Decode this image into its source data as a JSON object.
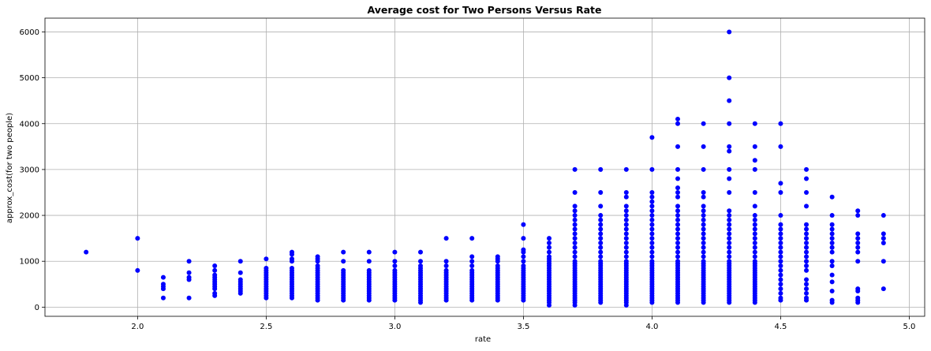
{
  "chart_data": {
    "type": "scatter",
    "title": "Average cost for Two Persons Versus Rate",
    "xlabel": "rate",
    "ylabel": "approx_cost(for two people)",
    "xlim": [
      1.64,
      5.06
    ],
    "ylim": [
      -200,
      6300
    ],
    "xticks": [
      2.0,
      2.5,
      3.0,
      3.5,
      4.0,
      4.5,
      5.0
    ],
    "xtick_labels": [
      "2.0",
      "2.5",
      "3.0",
      "3.5",
      "4.0",
      "4.5",
      "5.0"
    ],
    "yticks": [
      0,
      1000,
      2000,
      3000,
      4000,
      5000,
      6000
    ],
    "ytick_labels": [
      "0",
      "1000",
      "2000",
      "3000",
      "4000",
      "5000",
      "6000"
    ],
    "grid": true,
    "marker_color": "#0000ff",
    "columns": [
      {
        "x": 1.8,
        "values": [
          1200
        ]
      },
      {
        "x": 2.0,
        "values": [
          800,
          1500
        ]
      },
      {
        "x": 2.1,
        "values": [
          200,
          400,
          450,
          500,
          650
        ]
      },
      {
        "x": 2.2,
        "values": [
          200,
          600,
          650,
          750,
          1000
        ]
      },
      {
        "x": 2.3,
        "values": [
          250,
          300,
          400,
          450,
          500,
          550,
          600,
          650,
          700,
          800,
          900
        ]
      },
      {
        "x": 2.4,
        "values": [
          300,
          350,
          400,
          450,
          500,
          550,
          600,
          750,
          1000
        ]
      },
      {
        "x": 2.5,
        "values": [
          200,
          250,
          300,
          350,
          400,
          450,
          500,
          550,
          600,
          650,
          700,
          750,
          800,
          850,
          1050
        ]
      },
      {
        "x": 2.6,
        "values": [
          200,
          250,
          300,
          350,
          400,
          450,
          500,
          550,
          600,
          650,
          700,
          750,
          800,
          850,
          1000,
          1050,
          1150,
          1200
        ]
      },
      {
        "x": 2.7,
        "values": [
          150,
          200,
          250,
          300,
          350,
          400,
          450,
          500,
          550,
          600,
          650,
          700,
          750,
          800,
          850,
          900,
          1000,
          1050,
          1100
        ]
      },
      {
        "x": 2.8,
        "values": [
          150,
          200,
          250,
          300,
          350,
          400,
          450,
          500,
          550,
          600,
          650,
          700,
          750,
          800,
          1000,
          1200
        ]
      },
      {
        "x": 2.9,
        "values": [
          150,
          200,
          250,
          300,
          350,
          400,
          450,
          500,
          550,
          600,
          650,
          700,
          750,
          800,
          1000,
          1200
        ]
      },
      {
        "x": 3.0,
        "values": [
          150,
          200,
          250,
          300,
          350,
          400,
          450,
          500,
          550,
          600,
          650,
          700,
          750,
          800,
          900,
          1000,
          1200
        ]
      },
      {
        "x": 3.1,
        "values": [
          100,
          150,
          200,
          250,
          300,
          350,
          400,
          450,
          500,
          550,
          600,
          650,
          700,
          750,
          800,
          850,
          900,
          1000,
          1200
        ]
      },
      {
        "x": 3.2,
        "values": [
          150,
          200,
          250,
          300,
          350,
          400,
          450,
          500,
          550,
          600,
          650,
          700,
          750,
          800,
          900,
          1000,
          1500
        ]
      },
      {
        "x": 3.3,
        "values": [
          150,
          200,
          250,
          300,
          350,
          400,
          450,
          500,
          550,
          600,
          650,
          700,
          750,
          800,
          900,
          1000,
          1100,
          1500
        ]
      },
      {
        "x": 3.4,
        "values": [
          150,
          200,
          250,
          300,
          350,
          400,
          450,
          500,
          550,
          600,
          650,
          700,
          750,
          800,
          850,
          900,
          1000,
          1050,
          1100
        ]
      },
      {
        "x": 3.5,
        "values": [
          150,
          200,
          250,
          300,
          350,
          400,
          450,
          500,
          550,
          600,
          650,
          700,
          750,
          800,
          850,
          900,
          1000,
          1100,
          1200,
          1250,
          1500,
          1800
        ]
      },
      {
        "x": 3.6,
        "values": [
          40,
          100,
          150,
          200,
          250,
          300,
          350,
          400,
          450,
          500,
          550,
          600,
          650,
          700,
          750,
          800,
          850,
          900,
          950,
          1000,
          1050,
          1100,
          1200,
          1300,
          1400,
          1500
        ]
      },
      {
        "x": 3.7,
        "values": [
          40,
          100,
          150,
          200,
          250,
          300,
          350,
          400,
          450,
          500,
          550,
          600,
          650,
          700,
          750,
          800,
          850,
          900,
          950,
          1000,
          1100,
          1200,
          1300,
          1400,
          1500,
          1600,
          1700,
          1800,
          1900,
          2000,
          2100,
          2200,
          2500,
          3000
        ]
      },
      {
        "x": 3.8,
        "values": [
          100,
          150,
          200,
          250,
          300,
          350,
          400,
          450,
          500,
          550,
          600,
          650,
          700,
          750,
          800,
          850,
          900,
          950,
          1000,
          1100,
          1200,
          1300,
          1400,
          1500,
          1600,
          1700,
          1800,
          1900,
          2000,
          2200,
          2500,
          3000
        ]
      },
      {
        "x": 3.9,
        "values": [
          40,
          100,
          150,
          200,
          250,
          300,
          350,
          400,
          450,
          500,
          550,
          600,
          650,
          700,
          750,
          800,
          850,
          900,
          950,
          1000,
          1100,
          1200,
          1300,
          1400,
          1500,
          1600,
          1700,
          1800,
          1900,
          2000,
          2100,
          2200,
          2400,
          2500,
          3000
        ]
      },
      {
        "x": 4.0,
        "values": [
          100,
          150,
          200,
          250,
          300,
          350,
          400,
          450,
          500,
          550,
          600,
          650,
          700,
          750,
          800,
          850,
          900,
          950,
          1000,
          1100,
          1200,
          1300,
          1400,
          1500,
          1600,
          1700,
          1800,
          1900,
          2000,
          2100,
          2200,
          2300,
          2400,
          2500,
          3000,
          3700
        ]
      },
      {
        "x": 4.1,
        "values": [
          100,
          150,
          200,
          250,
          300,
          350,
          400,
          450,
          500,
          550,
          600,
          650,
          700,
          750,
          800,
          850,
          900,
          950,
          1000,
          1100,
          1200,
          1300,
          1400,
          1500,
          1600,
          1700,
          1800,
          1900,
          2000,
          2100,
          2200,
          2400,
          2500,
          2600,
          2800,
          3000,
          3500,
          4000,
          4100
        ]
      },
      {
        "x": 4.2,
        "values": [
          100,
          150,
          200,
          250,
          300,
          350,
          400,
          450,
          500,
          550,
          600,
          650,
          700,
          750,
          800,
          850,
          900,
          950,
          1000,
          1100,
          1200,
          1300,
          1400,
          1500,
          1600,
          1700,
          1800,
          1900,
          2000,
          2100,
          2200,
          2400,
          2500,
          3000,
          3500,
          4000
        ]
      },
      {
        "x": 4.3,
        "values": [
          100,
          150,
          200,
          250,
          300,
          350,
          400,
          450,
          500,
          550,
          600,
          650,
          700,
          750,
          800,
          850,
          900,
          950,
          1000,
          1100,
          1200,
          1300,
          1400,
          1500,
          1600,
          1700,
          1800,
          1900,
          2000,
          2100,
          2500,
          2800,
          3000,
          3400,
          3500,
          4000,
          4500,
          5000,
          6000
        ]
      },
      {
        "x": 4.4,
        "values": [
          100,
          150,
          200,
          250,
          300,
          350,
          400,
          450,
          500,
          550,
          600,
          650,
          700,
          750,
          800,
          850,
          900,
          950,
          1000,
          1100,
          1200,
          1300,
          1400,
          1500,
          1600,
          1700,
          1800,
          1900,
          2000,
          2200,
          2500,
          3000,
          3200,
          3500,
          4000
        ]
      },
      {
        "x": 4.5,
        "values": [
          150,
          200,
          300,
          400,
          500,
          600,
          700,
          800,
          900,
          1000,
          1100,
          1200,
          1300,
          1400,
          1500,
          1600,
          1700,
          1800,
          2000,
          2500,
          2700,
          3500,
          4000
        ]
      },
      {
        "x": 4.6,
        "values": [
          150,
          200,
          300,
          400,
          500,
          600,
          800,
          900,
          1000,
          1100,
          1200,
          1300,
          1400,
          1500,
          1600,
          1700,
          1800,
          2200,
          2500,
          2800,
          3000
        ]
      },
      {
        "x": 4.7,
        "values": [
          100,
          150,
          350,
          550,
          700,
          900,
          1000,
          1200,
          1300,
          1400,
          1500,
          1600,
          1700,
          1800,
          2000,
          2400
        ]
      },
      {
        "x": 4.8,
        "values": [
          100,
          150,
          200,
          350,
          400,
          1000,
          1200,
          1300,
          1400,
          1500,
          1600,
          2000,
          2100
        ]
      },
      {
        "x": 4.9,
        "values": [
          400,
          1000,
          1400,
          1500,
          1600,
          2000
        ]
      }
    ]
  }
}
